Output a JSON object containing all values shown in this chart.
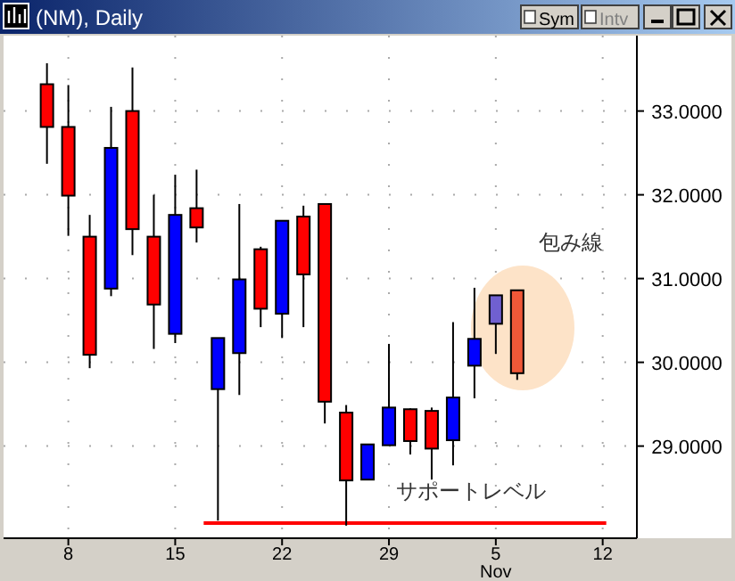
{
  "chart_data": {
    "type": "candlestick",
    "title": "(NM), Daily",
    "categories": [
      null,
      "8",
      null,
      null,
      null,
      null,
      "15",
      null,
      null,
      null,
      null,
      "22",
      null,
      null,
      null,
      null,
      "29",
      null,
      null,
      null,
      null,
      "5\nNov",
      null,
      null,
      null,
      null,
      "12"
    ],
    "ohlc": [
      [
        33.32,
        33.57,
        32.37,
        32.81
      ],
      [
        32.81,
        33.31,
        31.51,
        31.99
      ],
      [
        31.5,
        31.76,
        29.93,
        30.09
      ],
      [
        30.88,
        33.05,
        30.79,
        32.56
      ],
      [
        33.0,
        33.52,
        31.28,
        31.59
      ],
      [
        31.5,
        32.0,
        30.16,
        30.69
      ],
      [
        30.34,
        32.24,
        30.23,
        31.76
      ],
      [
        31.84,
        32.3,
        31.43,
        31.61
      ],
      [
        29.68,
        30.29,
        28.11,
        30.29
      ],
      [
        30.11,
        31.89,
        29.61,
        30.99
      ],
      [
        31.35,
        31.38,
        30.42,
        30.64
      ],
      [
        30.58,
        31.69,
        30.29,
        31.69
      ],
      [
        31.74,
        31.87,
        30.42,
        31.05
      ],
      [
        31.89,
        31.89,
        29.27,
        29.53
      ],
      [
        29.4,
        29.49,
        28.05,
        28.59
      ],
      [
        28.6,
        29.02,
        28.6,
        29.02
      ],
      [
        29.01,
        30.22,
        29.01,
        29.46
      ],
      [
        29.44,
        29.45,
        28.9,
        29.06
      ],
      [
        29.42,
        29.46,
        28.6,
        28.97
      ],
      [
        29.07,
        30.48,
        28.77,
        29.58
      ],
      [
        29.96,
        30.89,
        29.57,
        30.28
      ],
      [
        30.46,
        30.8,
        30.1,
        30.8
      ],
      [
        30.86,
        30.86,
        29.79,
        29.87
      ],
      null,
      null,
      null,
      null
    ],
    "colors": [
      "#ff0000",
      "#ff0000",
      "#ff0000",
      "#0000ff",
      "#ff0000",
      "#ff0000",
      "#0000ff",
      "#ff0000",
      "#0000ff",
      "#0000ff",
      "#ff0000",
      "#0000ff",
      "#ff0000",
      "#ff0000",
      "#ff0000",
      "#0000ff",
      "#0000ff",
      "#ff0000",
      "#ff0000",
      "#0000ff",
      "#0000ff",
      "#7060d0",
      "#f05838",
      null,
      null,
      null,
      null
    ],
    "ylim": [
      27.9,
      33.9
    ],
    "yticks": [
      {
        "value": 29,
        "label": "29.0000"
      },
      {
        "value": 30,
        "label": "30.0000"
      },
      {
        "value": 31,
        "label": "31.0000"
      },
      {
        "value": 32,
        "label": "32.0000"
      },
      {
        "value": 33,
        "label": "33.0000"
      }
    ],
    "grid": true,
    "ref_lines": [
      {
        "axis": "y",
        "value": 28.08,
        "label": "サポートレベル",
        "color": "#ff0000"
      }
    ],
    "annotations": [
      "包み線",
      "Sym",
      "Intv"
    ]
  }
}
